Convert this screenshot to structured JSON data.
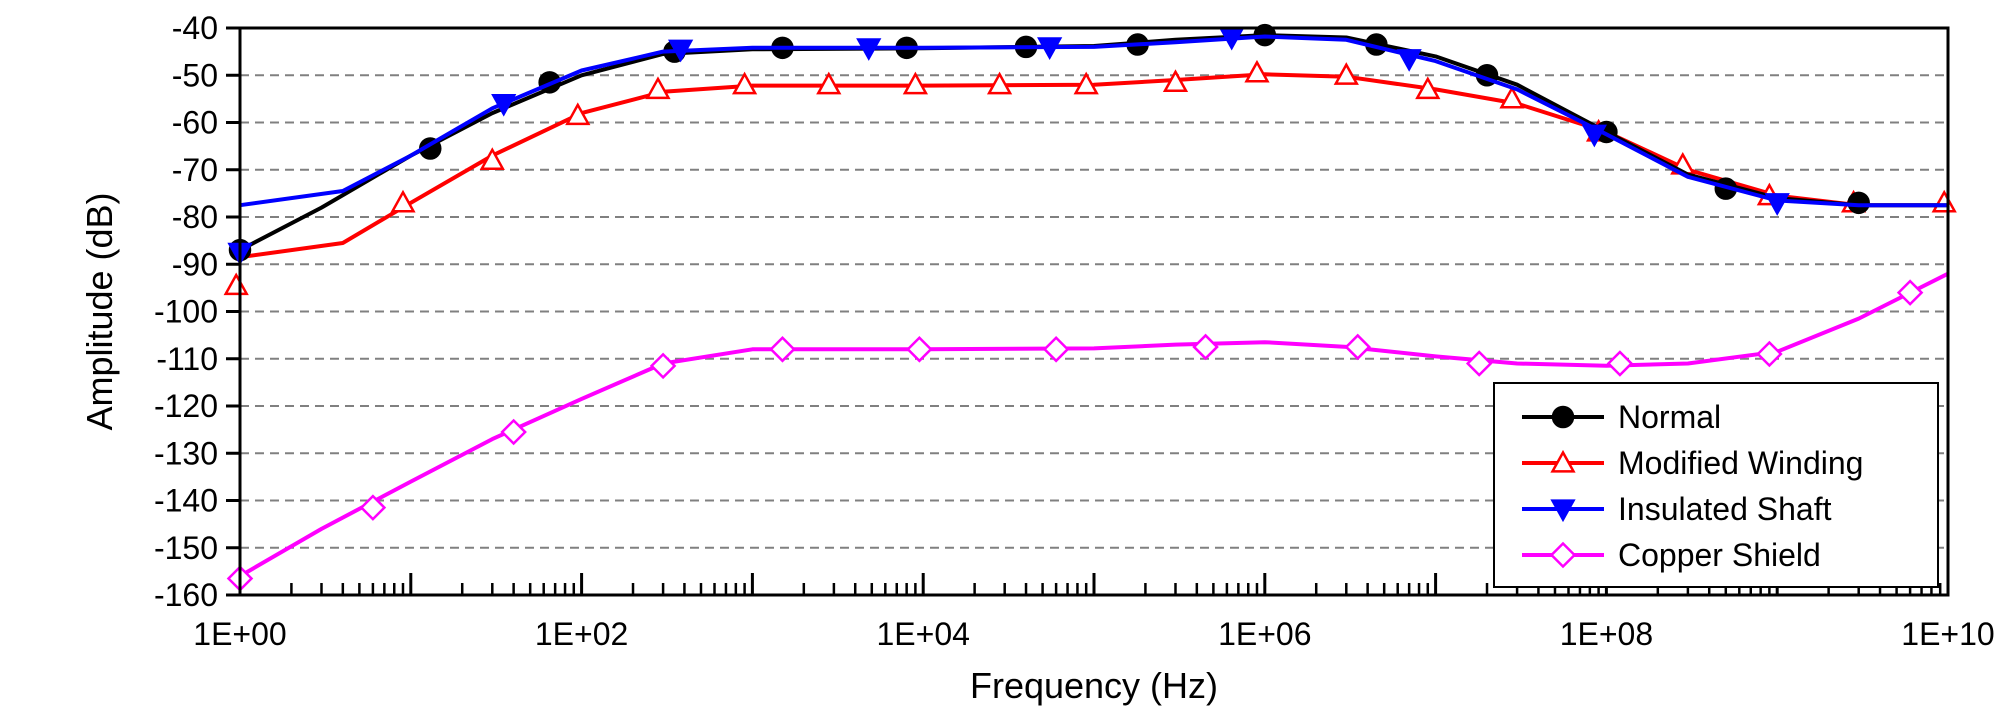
{
  "chart_data": {
    "type": "line",
    "xlabel": "Frequency (Hz)",
    "ylabel": "Amplitude (dB)",
    "xscale": "log",
    "xlim": [
      1,
      10000000000
    ],
    "ylim": [
      -160,
      -40
    ],
    "x_ticks": [
      "1E+00",
      "1E+02",
      "1E+04",
      "1E+06",
      "1E+08",
      "1E+10"
    ],
    "y_ticks": [
      "-40",
      "-50",
      "-60",
      "-70",
      "-80",
      "-90",
      "-100",
      "-110",
      "-120",
      "-130",
      "-140",
      "-150",
      "-160"
    ],
    "grid": "horizontal dashed",
    "legend_position": "bottom-right",
    "series": [
      {
        "name": "Normal",
        "color": "#000000",
        "marker": "filled-circle",
        "curve": [
          [
            1,
            -87
          ],
          [
            3,
            -78
          ],
          [
            10,
            -67
          ],
          [
            30,
            -58
          ],
          [
            100,
            -50
          ],
          [
            300,
            -45.5
          ],
          [
            1000,
            -44.5
          ],
          [
            10000,
            -44.3
          ],
          [
            100000,
            -43.8
          ],
          [
            300000,
            -42.5
          ],
          [
            1000000,
            -41.5
          ],
          [
            3000000,
            -42
          ],
          [
            10000000,
            -46
          ],
          [
            30000000,
            -52
          ],
          [
            100000000,
            -62
          ],
          [
            300000000,
            -71
          ],
          [
            1000000000,
            -76
          ],
          [
            3000000000,
            -77.5
          ],
          [
            10000000000,
            -77.5
          ]
        ],
        "points": [
          [
            1,
            -87
          ],
          [
            13,
            -65.5
          ],
          [
            65,
            -51.5
          ],
          [
            350,
            -45
          ],
          [
            1500,
            -44.2
          ],
          [
            8000,
            -44.2
          ],
          [
            40000,
            -44
          ],
          [
            180000,
            -43.5
          ],
          [
            1000000,
            -41.5
          ],
          [
            4500000,
            -43.5
          ],
          [
            20000000,
            -50
          ],
          [
            100000000,
            -62
          ],
          [
            500000000,
            -74
          ],
          [
            3000000000,
            -77
          ]
        ]
      },
      {
        "name": "Modified Winding",
        "color": "#ff0000",
        "marker": "open-triangle",
        "curve": [
          [
            1,
            -88.5
          ],
          [
            4,
            -85.5
          ],
          [
            10,
            -77
          ],
          [
            30,
            -67
          ],
          [
            100,
            -58
          ],
          [
            300,
            -53.5
          ],
          [
            1000,
            -52.2
          ],
          [
            10000,
            -52.2
          ],
          [
            100000,
            -52
          ],
          [
            300000,
            -51
          ],
          [
            1000000,
            -49.8
          ],
          [
            3000000,
            -50.3
          ],
          [
            10000000,
            -53
          ],
          [
            30000000,
            -56
          ],
          [
            100000000,
            -62
          ],
          [
            300000000,
            -70
          ],
          [
            1000000000,
            -75.5
          ],
          [
            3000000000,
            -77.5
          ],
          [
            10000000000,
            -77.5
          ]
        ],
        "points": [
          [
            0.95,
            -94.5
          ],
          [
            9,
            -77
          ],
          [
            30,
            -68
          ],
          [
            95,
            -58.5
          ],
          [
            280,
            -53
          ],
          [
            900,
            -52
          ],
          [
            2800,
            -52
          ],
          [
            9000,
            -52
          ],
          [
            28000,
            -52
          ],
          [
            90000,
            -52
          ],
          [
            300000,
            -51.5
          ],
          [
            900000,
            -49.5
          ],
          [
            3000000,
            -50
          ],
          [
            9000000,
            -53
          ],
          [
            28000000,
            -55
          ],
          [
            90000000,
            -62
          ],
          [
            280000000,
            -69
          ],
          [
            900000000,
            -75.5
          ],
          [
            2800000000,
            -77
          ],
          [
            9500000000,
            -77
          ]
        ]
      },
      {
        "name": "Insulated Shaft",
        "color": "#0000ff",
        "marker": "filled-triangle-down",
        "curve": [
          [
            1,
            -77.5
          ],
          [
            4,
            -74.5
          ],
          [
            10,
            -67
          ],
          [
            30,
            -57
          ],
          [
            100,
            -49
          ],
          [
            300,
            -45
          ],
          [
            1000,
            -44.2
          ],
          [
            10000,
            -44.2
          ],
          [
            100000,
            -44
          ],
          [
            300000,
            -43
          ],
          [
            1000000,
            -41.8
          ],
          [
            3000000,
            -42.5
          ],
          [
            10000000,
            -47
          ],
          [
            30000000,
            -53
          ],
          [
            100000000,
            -62.5
          ],
          [
            300000000,
            -71.5
          ],
          [
            1000000000,
            -76.5
          ],
          [
            3000000000,
            -77.5
          ],
          [
            10000000000,
            -77.5
          ]
        ],
        "points": [
          [
            1,
            -87.5
          ],
          [
            35,
            -56
          ],
          [
            380,
            -44.5
          ],
          [
            4800,
            -44.2
          ],
          [
            55000,
            -44
          ],
          [
            640000,
            -42
          ],
          [
            7000000,
            -46.5
          ],
          [
            85000000,
            -62.5
          ],
          [
            1000000000,
            -77
          ]
        ]
      },
      {
        "name": "Copper Shield",
        "color": "#ff00ff",
        "marker": "open-diamond",
        "curve": [
          [
            1,
            -156
          ],
          [
            3,
            -146
          ],
          [
            10,
            -136
          ],
          [
            30,
            -127
          ],
          [
            100,
            -118.5
          ],
          [
            300,
            -111
          ],
          [
            1000,
            -108
          ],
          [
            10000,
            -108
          ],
          [
            100000,
            -107.8
          ],
          [
            300000,
            -107
          ],
          [
            1000000,
            -106.5
          ],
          [
            3000000,
            -107.5
          ],
          [
            10000000,
            -109.5
          ],
          [
            30000000,
            -111
          ],
          [
            100000000,
            -111.5
          ],
          [
            300000000,
            -111
          ],
          [
            1000000000,
            -108.5
          ],
          [
            3000000000,
            -101.5
          ],
          [
            10000000000,
            -92
          ]
        ],
        "points": [
          [
            1,
            -156.5
          ],
          [
            6,
            -141.5
          ],
          [
            40,
            -125.5
          ],
          [
            300,
            -111.5
          ],
          [
            1500,
            -108
          ],
          [
            9500,
            -108
          ],
          [
            60000,
            -108
          ],
          [
            450000,
            -107.5
          ],
          [
            3500000,
            -107.5
          ],
          [
            18000000,
            -111
          ],
          [
            120000000,
            -111
          ],
          [
            900000000,
            -109
          ],
          [
            6000000000,
            -96
          ]
        ]
      }
    ]
  }
}
